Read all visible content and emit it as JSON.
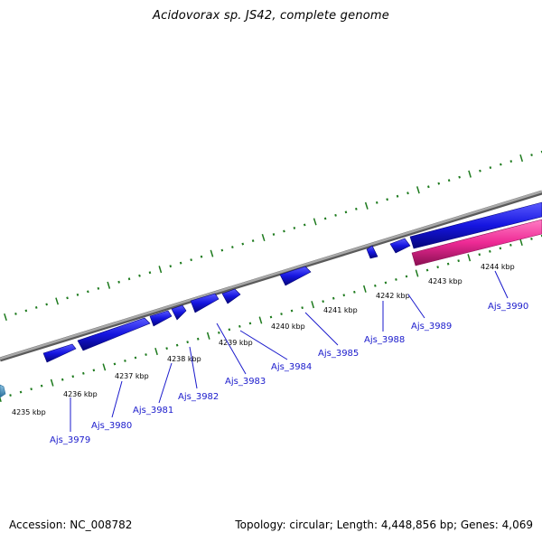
{
  "title": "Acidovorax sp. JS42, complete genome",
  "footer": {
    "accession": "Accession: NC_008782",
    "topology": "Topology: circular; Length: 4,448,856 bp; Genes: 4,069"
  },
  "colors": {
    "background": "#ffffff",
    "backbone": "#8a8a8a",
    "tick": "#1d7a1d",
    "forward_gene": "#1515e0",
    "reverse_gene": "#ee2a95",
    "label": "#1a1acc",
    "edge_gene": "#4a9ac8"
  },
  "kbp_labels": [
    "4235 kbp",
    "4236 kbp",
    "4237 kbp",
    "4238 kbp",
    "4239 kbp",
    "4240 kbp",
    "4241 kbp",
    "4242 kbp",
    "4243 kbp",
    "4244 kbp"
  ],
  "genes": [
    "Ajs_3979",
    "Ajs_3980",
    "Ajs_3981",
    "Ajs_3982",
    "Ajs_3983",
    "Ajs_3984",
    "Ajs_3985",
    "Ajs_3988",
    "Ajs_3989",
    "Ajs_3990"
  ]
}
